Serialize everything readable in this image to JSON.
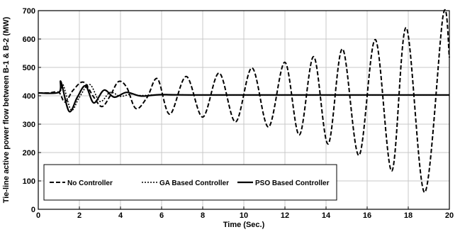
{
  "chart_data": {
    "type": "line",
    "xlabel": "Time (Sec.)",
    "ylabel": "Tie-line active power flow between B-1 & B-2 (MW)",
    "xlim": [
      0,
      20
    ],
    "ylim": [
      0,
      700
    ],
    "xticks": [
      0,
      2,
      4,
      6,
      8,
      10,
      12,
      14,
      16,
      18,
      20
    ],
    "yticks": [
      0,
      100,
      200,
      300,
      400,
      500,
      600,
      700
    ],
    "grid": true,
    "legend_position": "bottom-left",
    "series": [
      {
        "name": "No Controller",
        "style": "dashed",
        "points": [
          [
            0,
            410
          ],
          [
            0.5,
            410
          ],
          [
            1,
            412
          ],
          [
            1.3,
            378
          ],
          [
            1.7,
            420
          ],
          [
            2.2,
            448
          ],
          [
            2.7,
            395
          ],
          [
            3.1,
            362
          ],
          [
            3.5,
            400
          ],
          [
            3.9,
            450
          ],
          [
            4.3,
            430
          ],
          [
            4.75,
            355
          ],
          [
            5.3,
            395
          ],
          [
            5.8,
            460
          ],
          [
            6.4,
            335
          ],
          [
            7.2,
            468
          ],
          [
            8,
            325
          ],
          [
            8.8,
            480
          ],
          [
            9.6,
            308
          ],
          [
            10.4,
            498
          ],
          [
            11.2,
            290
          ],
          [
            12,
            518
          ],
          [
            12.7,
            262
          ],
          [
            13.4,
            538
          ],
          [
            14.1,
            230
          ],
          [
            14.8,
            565
          ],
          [
            15.6,
            190
          ],
          [
            16.4,
            598
          ],
          [
            17.2,
            135
          ],
          [
            17.9,
            640
          ],
          [
            18.8,
            60
          ],
          [
            19.7,
            685
          ],
          [
            20,
            535
          ]
        ]
      },
      {
        "name": "GA Based Controller",
        "style": "dotted",
        "points": [
          [
            0,
            410
          ],
          [
            1,
            412
          ],
          [
            1.2,
            440
          ],
          [
            1.6,
            350
          ],
          [
            2,
            395
          ],
          [
            2.5,
            440
          ],
          [
            3,
            380
          ],
          [
            3.5,
            412
          ],
          [
            4,
            398
          ],
          [
            4.5,
            406
          ],
          [
            5,
            401
          ],
          [
            6,
            404
          ],
          [
            8,
            403
          ],
          [
            20,
            403
          ]
        ]
      },
      {
        "name": "PSO Based Controller",
        "style": "solid",
        "points": [
          [
            0,
            410
          ],
          [
            1,
            412
          ],
          [
            1.1,
            450
          ],
          [
            1.5,
            345
          ],
          [
            1.9,
            395
          ],
          [
            2.3,
            435
          ],
          [
            2.7,
            375
          ],
          [
            3.2,
            420
          ],
          [
            3.7,
            395
          ],
          [
            4.3,
            412
          ],
          [
            5,
            399
          ],
          [
            6,
            404
          ],
          [
            8,
            403
          ],
          [
            20,
            403
          ]
        ]
      }
    ]
  }
}
